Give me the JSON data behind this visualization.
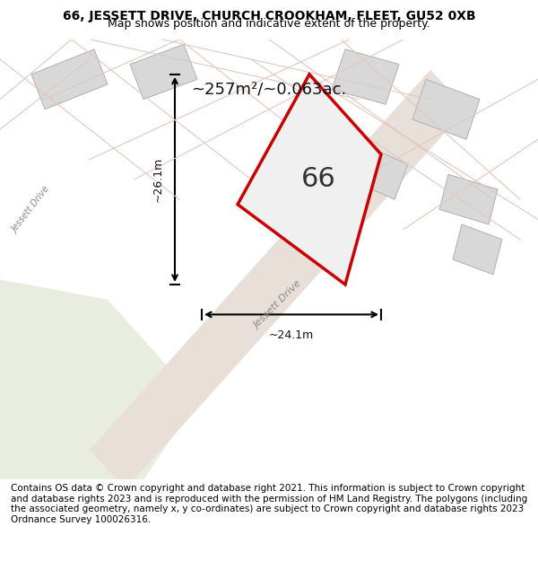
{
  "title_line1": "66, JESSETT DRIVE, CHURCH CROOKHAM, FLEET, GU52 0XB",
  "title_line2": "Map shows position and indicative extent of the property.",
  "area_label": "~257m²/~0.063ac.",
  "property_number": "66",
  "width_label": "~24.1m",
  "height_label": "~26.1m",
  "footer_text": "Contains OS data © Crown copyright and database right 2021. This information is subject to Crown copyright and database rights 2023 and is reproduced with the permission of HM Land Registry. The polygons (including the associated geometry, namely x, y co-ordinates) are subject to Crown copyright and database rights 2023 Ordnance Survey 100026316.",
  "bg_color": "#f5f5f0",
  "map_bg": "#f0f0ea",
  "road_color": "#e8e0d8",
  "plot_outline_color": "#cc0000",
  "plot_fill_color": "#e8e8e8",
  "building_fill": "#d8d8d8",
  "building_outline": "#b0b0b0",
  "road_line_color": "#e0c8c0",
  "green_area": "#e8ede0",
  "title_fontsize": 10,
  "subtitle_fontsize": 9,
  "footer_fontsize": 7.5
}
